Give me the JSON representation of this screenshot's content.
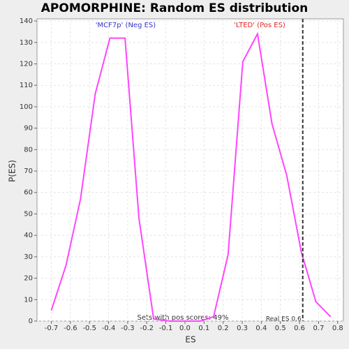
{
  "chart_data": {
    "type": "line",
    "title": "APOMORPHINE: Random ES distribution",
    "xlabel": "ES",
    "ylabel": "P(ES)",
    "x": [
      -0.7,
      -0.623,
      -0.547,
      -0.47,
      -0.393,
      -0.314,
      -0.241,
      -0.164,
      -0.08,
      0,
      0.08,
      0.15,
      0.226,
      0.303,
      0.38,
      0.456,
      0.533,
      0.61,
      0.686,
      0.763
    ],
    "series": [
      {
        "color": "#ff44ff",
        "values": [
          5,
          26,
          57,
          106,
          132,
          132,
          48,
          1,
          0,
          0,
          0,
          2,
          31,
          121,
          134,
          92,
          68,
          32,
          9,
          2
        ]
      }
    ],
    "xlim": [
      -0.775,
      0.83
    ],
    "ylim": [
      0,
      141
    ],
    "xticks": [
      -0.7,
      -0.6,
      -0.5,
      -0.4,
      -0.3,
      -0.2,
      -0.1,
      {
        "value": 0,
        "label": "0.0"
      },
      0.1,
      0.2,
      0.3,
      0.4,
      0.5,
      0.6,
      0.7,
      0.8
    ],
    "yticks": [
      0,
      10,
      20,
      30,
      40,
      50,
      60,
      70,
      80,
      90,
      100,
      110,
      120,
      130,
      140
    ],
    "grid": true,
    "ref_line": {
      "x": 0.617,
      "label": "Real ES 0.6"
    },
    "neg_label": "'MCF7p' (Neg ES)",
    "pos_label": "'LTED' (Pos ES)",
    "footnote": "Sets with pos scores: 49%"
  }
}
